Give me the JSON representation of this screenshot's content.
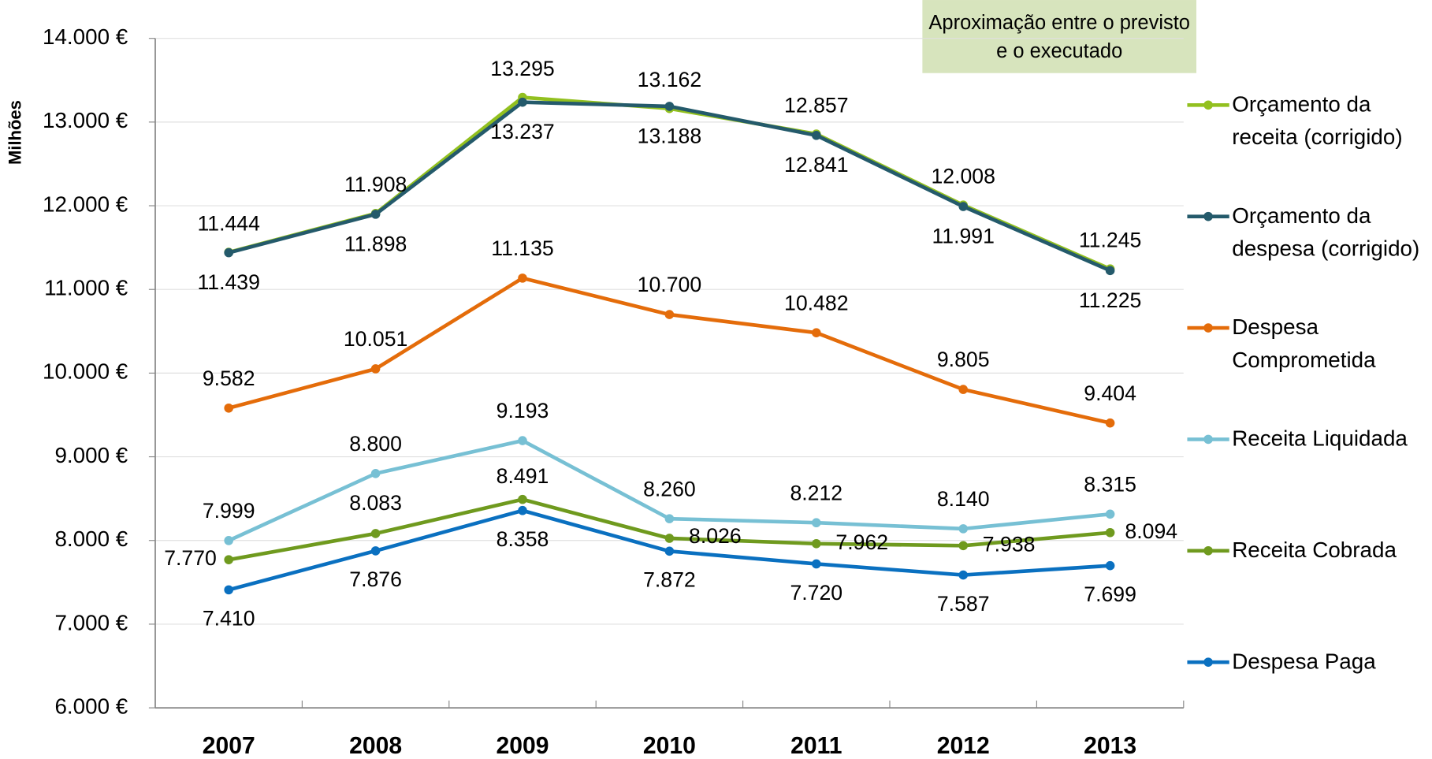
{
  "chart_data": {
    "type": "line",
    "y_label": "Milhões",
    "annotation": "Aproximação entre o previsto e o executado",
    "categories": [
      "2007",
      "2008",
      "2009",
      "2010",
      "2011",
      "2012",
      "2013"
    ],
    "ylim": [
      6000,
      14000
    ],
    "yticks": [
      {
        "value": 6000,
        "label": "6.000 €"
      },
      {
        "value": 7000,
        "label": "7.000 €"
      },
      {
        "value": 8000,
        "label": "8.000 €"
      },
      {
        "value": 9000,
        "label": "9.000 €"
      },
      {
        "value": 10000,
        "label": "10.000 €"
      },
      {
        "value": 11000,
        "label": "11.000 €"
      },
      {
        "value": 12000,
        "label": "12.000 €"
      },
      {
        "value": 13000,
        "label": "13.000 €"
      },
      {
        "value": 14000,
        "label": "14.000 €"
      }
    ],
    "grid": true,
    "legend": "right",
    "series": [
      {
        "name": "Orçamento da receita (corrigido)",
        "color": "#92c01f",
        "values": [
          11444,
          11908,
          13295,
          13162,
          12857,
          12008,
          11245
        ],
        "value_labels": [
          "11.444",
          "11.908",
          "13.295",
          "13.162",
          "12.857",
          "12.008",
          "11.245"
        ]
      },
      {
        "name": "Orçamento da despesa (corrigido)",
        "color": "#245a6b",
        "values": [
          11439,
          11898,
          13237,
          13188,
          12841,
          11991,
          11225
        ],
        "value_labels": [
          "11.439",
          "11.898",
          "13.237",
          "13.188",
          "12.841",
          "11.991",
          "11.225"
        ]
      },
      {
        "name": "Despesa Comprometida",
        "color": "#e46c0a",
        "values": [
          9582,
          10051,
          11135,
          10700,
          10482,
          9805,
          9404
        ],
        "value_labels": [
          "9.582",
          "10.051",
          "11.135",
          "10.700",
          "10.482",
          "9.805",
          "9.404"
        ]
      },
      {
        "name": "Receita Liquidada",
        "color": "#77c0d4",
        "values": [
          7999,
          8800,
          9193,
          8260,
          8212,
          8140,
          8315
        ],
        "value_labels": [
          "7.999",
          "8.800",
          "9.193",
          "8.260",
          "8.212",
          "8.140",
          "8.315"
        ]
      },
      {
        "name": "Receita Cobrada",
        "color": "#6f9a1e",
        "values": [
          7770,
          8083,
          8491,
          8026,
          7962,
          7938,
          8094
        ],
        "value_labels": [
          "7.770",
          "8.083",
          "8.491",
          "8.026",
          "7.962",
          "7.938",
          "8.094"
        ]
      },
      {
        "name": "Despesa Paga",
        "color": "#0a70c0",
        "values": [
          7410,
          7876,
          8358,
          7872,
          7720,
          7587,
          7699
        ],
        "value_labels": [
          "7.410",
          "7.876",
          "8.358",
          "7.872",
          "7.720",
          "7.587",
          "7.699"
        ]
      }
    ]
  }
}
